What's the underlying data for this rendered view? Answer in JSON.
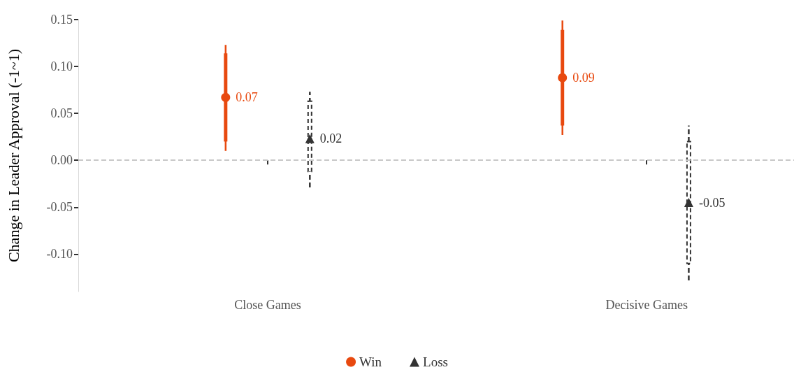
{
  "chart_data": {
    "type": "scatter",
    "ylabel": "Change in Leader Approval (-1~1)",
    "categories": [
      null,
      null,
      null,
      null,
      "Close Games",
      null,
      null,
      null,
      null,
      null,
      null,
      null,
      null,
      "Decisive Games",
      null,
      null,
      null
    ],
    "series": [
      {
        "name": "Win",
        "color": "#e8490f",
        "marker": "circle",
        "line_style": "solid",
        "values": [
          null,
          null,
          null,
          0.067,
          null,
          null,
          null,
          null,
          null,
          null,
          null,
          0.088,
          null,
          null,
          null,
          null,
          null
        ],
        "errors": [
          null,
          null,
          null,
          [
            0.01,
            0.123
          ],
          null,
          null,
          null,
          null,
          null,
          null,
          null,
          [
            0.027,
            0.149
          ],
          null,
          null,
          null,
          null,
          null
        ],
        "value_labels": [
          null,
          null,
          null,
          "0.07",
          null,
          null,
          null,
          null,
          null,
          null,
          null,
          "0.09",
          null,
          null,
          null,
          null,
          null
        ]
      },
      {
        "name": "Loss",
        "color": "#333333",
        "marker": "triangle",
        "line_style": "dashed",
        "values": [
          null,
          null,
          null,
          null,
          null,
          0.023,
          null,
          null,
          null,
          null,
          null,
          null,
          null,
          null,
          -0.045,
          null,
          null
        ],
        "errors": [
          null,
          null,
          null,
          null,
          null,
          [
            -0.029,
            0.073
          ],
          null,
          null,
          null,
          null,
          null,
          null,
          null,
          null,
          [
            -0.128,
            0.037
          ],
          null,
          null
        ],
        "value_labels": [
          null,
          null,
          null,
          null,
          null,
          "0.02",
          null,
          null,
          null,
          null,
          null,
          null,
          null,
          null,
          "-0.05",
          null,
          null
        ]
      },
      {
        "type": "bar",
        "color": "#e8490f",
        "line_style": "solid",
        "base": [
          null,
          null,
          null,
          0.02,
          null,
          null,
          null,
          null,
          null,
          null,
          null,
          0.037,
          null,
          null,
          null,
          null,
          null
        ],
        "values": [
          null,
          null,
          null,
          0.094,
          null,
          null,
          null,
          null,
          null,
          null,
          null,
          0.102,
          null,
          null,
          null,
          null,
          null
        ]
      },
      {
        "type": "bar",
        "color": "#333333",
        "line_style": "dashed",
        "base": [
          null,
          null,
          null,
          null,
          null,
          -0.012,
          null,
          null,
          null,
          null,
          null,
          null,
          null,
          null,
          -0.11,
          null,
          null
        ],
        "values": [
          null,
          null,
          null,
          null,
          null,
          0.075,
          null,
          null,
          null,
          null,
          null,
          null,
          null,
          null,
          0.13,
          null,
          null
        ]
      }
    ],
    "ylim": [
      -0.14,
      0.15
    ],
    "yticks": [
      {
        "value": -0.1,
        "label": "-0.10"
      },
      {
        "value": -0.05,
        "label": "-0.05"
      },
      {
        "value": 0,
        "label": "0.00"
      },
      {
        "value": 0.05,
        "label": "0.05"
      },
      {
        "value": 0.1,
        "label": "0.10"
      },
      {
        "value": 0.15,
        "label": "0.15"
      }
    ],
    "ref_lines": [
      {
        "axis": "y",
        "value": 0,
        "color": "#c8c8c8",
        "line_style": "dashed"
      }
    ],
    "grid": false,
    "legend": "bottom"
  }
}
